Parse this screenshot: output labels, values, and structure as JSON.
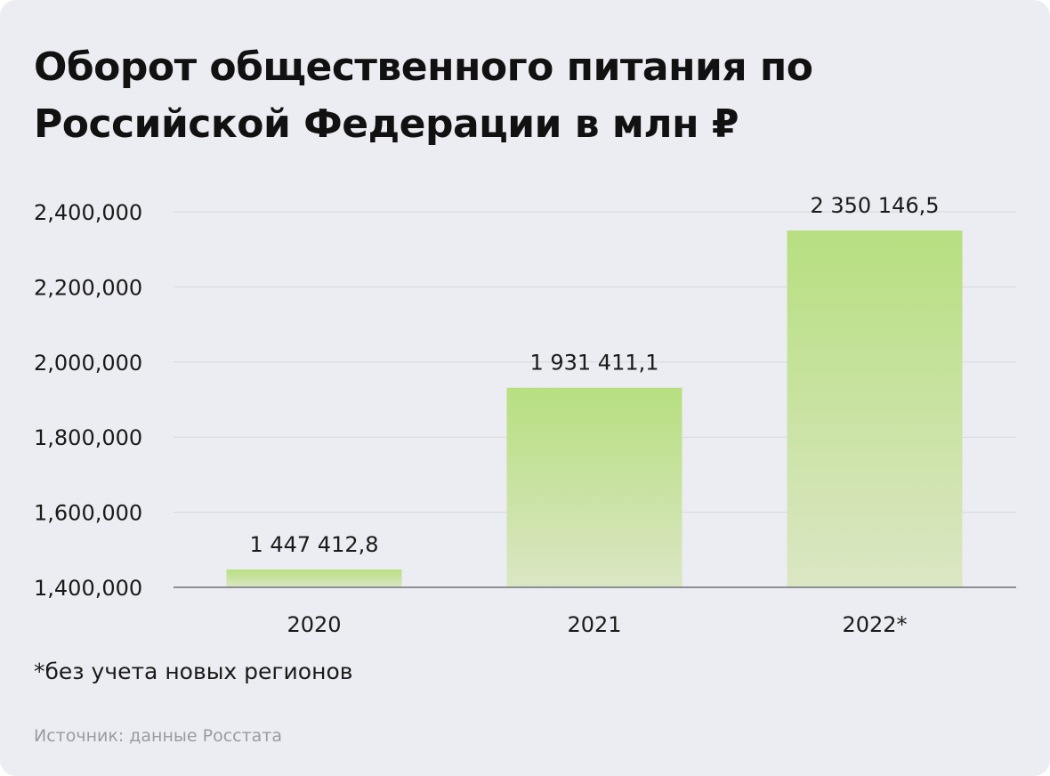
{
  "title_lines": [
    "Оборот общественного питания по",
    "Российской Федерации в млн ₽"
  ],
  "footnote": "*без учета новых регионов",
  "source": "Источник: данные Росстата",
  "colors": {
    "background": "#ecedf2",
    "bar_top": "#b7df80",
    "bar_bottom": "#dbe6c4",
    "grid": "#d6d7dc",
    "axis": "#6f7076"
  },
  "chart_data": {
    "type": "bar",
    "categories": [
      "2020",
      "2021",
      "2022*"
    ],
    "values": [
      1447412.8,
      1931411.1,
      2350146.5
    ],
    "data_labels": [
      "1 447 412,8",
      "1 931 411,1",
      "2 350 146,5"
    ],
    "yticks": [
      1400000,
      1600000,
      1800000,
      2000000,
      2200000,
      2400000
    ],
    "ytick_labels": [
      "1,400,000",
      "1,600,000",
      "1,800,000",
      "2,000,000",
      "2,200,000",
      "2,400,000"
    ],
    "ylim": [
      1400000,
      2400000
    ],
    "grid": true,
    "legend": false
  }
}
